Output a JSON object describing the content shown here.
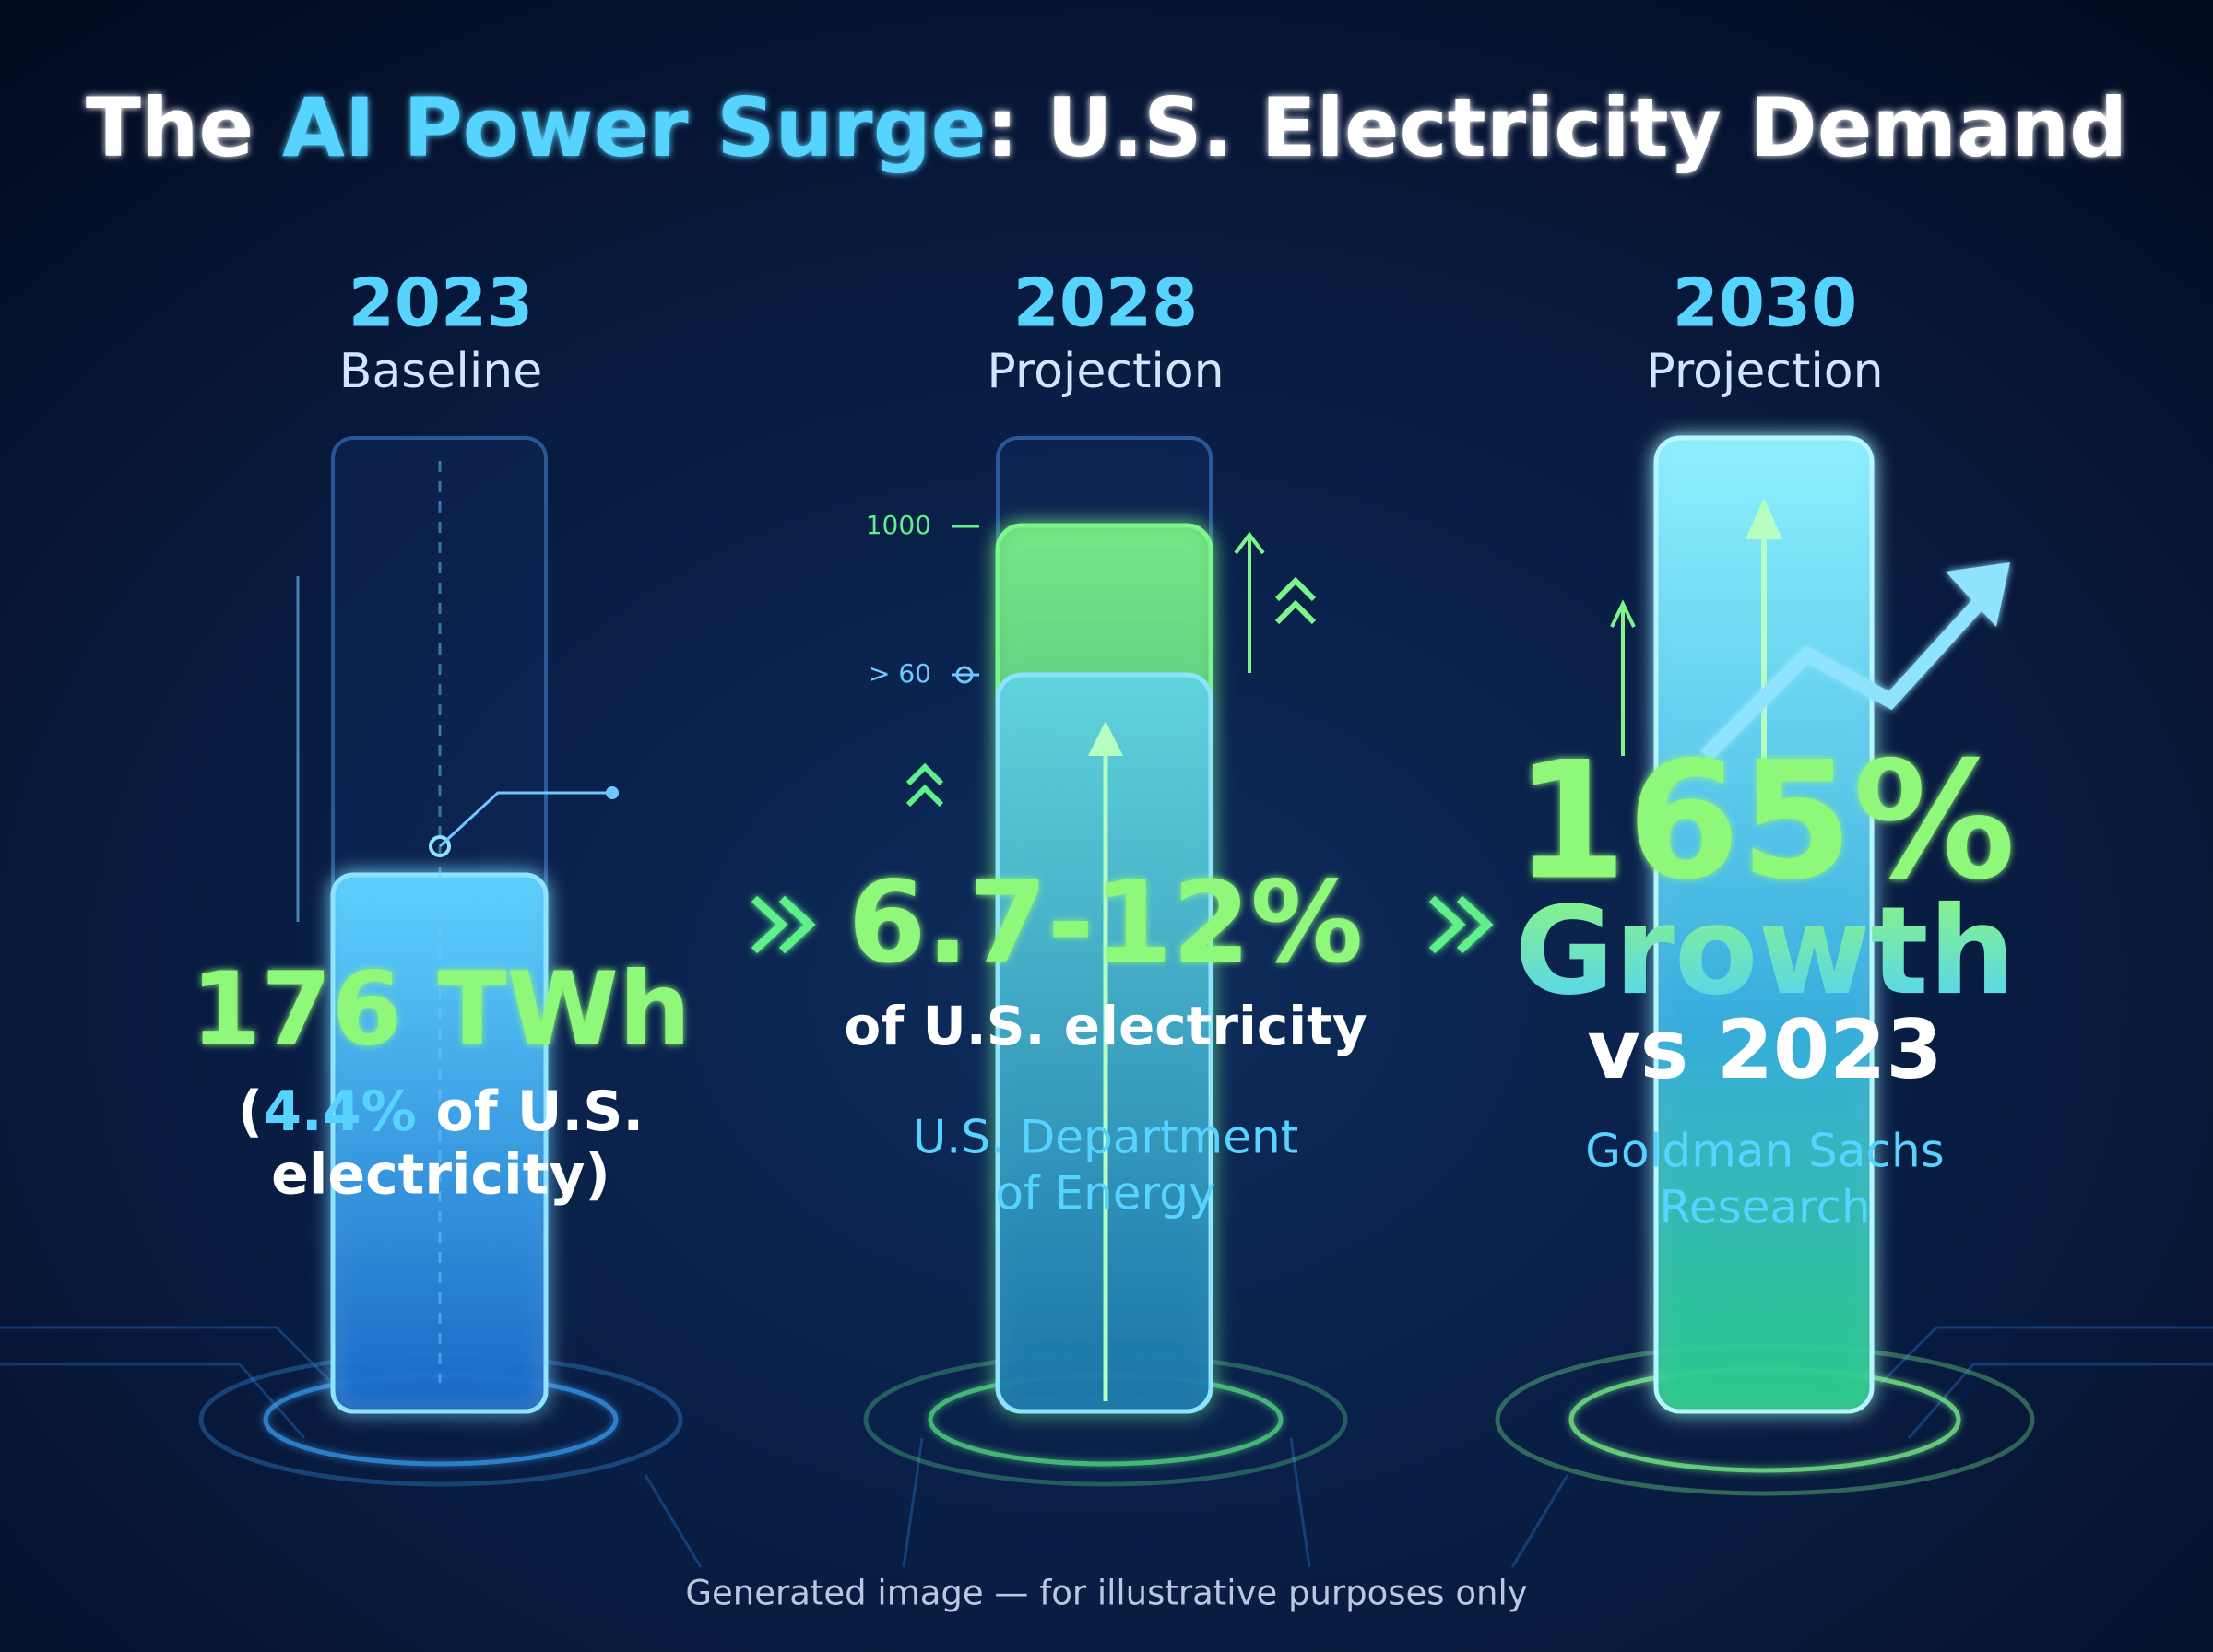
{
  "title": {
    "prefix": "The",
    "highlight": "AI Power Surge",
    "suffix": ": U.S. Electricity Demand"
  },
  "panels": [
    {
      "year": "2023",
      "label": "Baseline",
      "headline": "176 TWh",
      "detail": {
        "open": "(",
        "highlight": "4.4%",
        "rest_line1": "of U.S.",
        "rest_line2": "electricity)"
      }
    },
    {
      "year": "2028",
      "label": "Projection",
      "headline": "6.7-12%",
      "subline": "of U.S. electricity",
      "source": [
        "U.S. Department",
        "of Energy"
      ],
      "gauge_labels": [
        "1000",
        "> 60"
      ]
    },
    {
      "year": "2030",
      "label": "Projection",
      "headline": "165%",
      "subline": "Growth",
      "comparison": "vs 2023",
      "source": [
        "Goldman Sachs",
        "Research"
      ]
    }
  ],
  "footnote": "Generated image — for illustrative purposes only"
}
